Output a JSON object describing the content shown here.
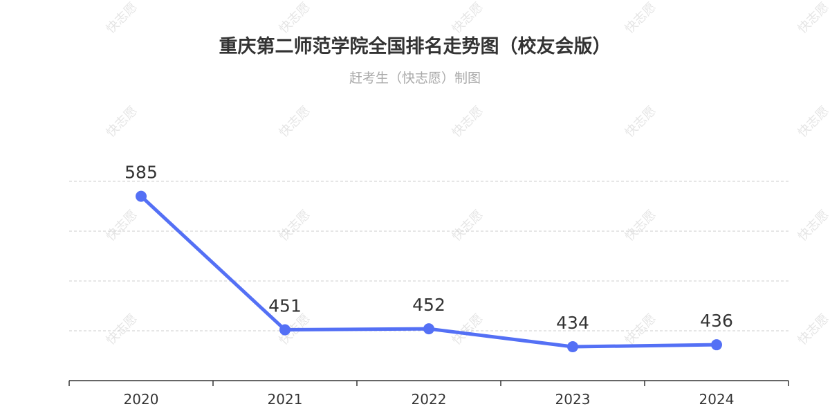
{
  "chart_data": {
    "type": "line",
    "title": "重庆第二师范学院全国排名走势图（校友会版）",
    "subtitle": "赶考生（快志愿）制图",
    "categories": [
      "2020",
      "2021",
      "2022",
      "2023",
      "2024"
    ],
    "series": [
      {
        "values": [
          585,
          451,
          452,
          434,
          436
        ]
      }
    ],
    "ylim": [
      650,
      400
    ],
    "y_inverted": true,
    "grid": true,
    "legend": "none",
    "colors": {
      "line": "#5470f5",
      "grid": "#cccccc",
      "axis": "#333333"
    },
    "watermark": "快志愿"
  }
}
